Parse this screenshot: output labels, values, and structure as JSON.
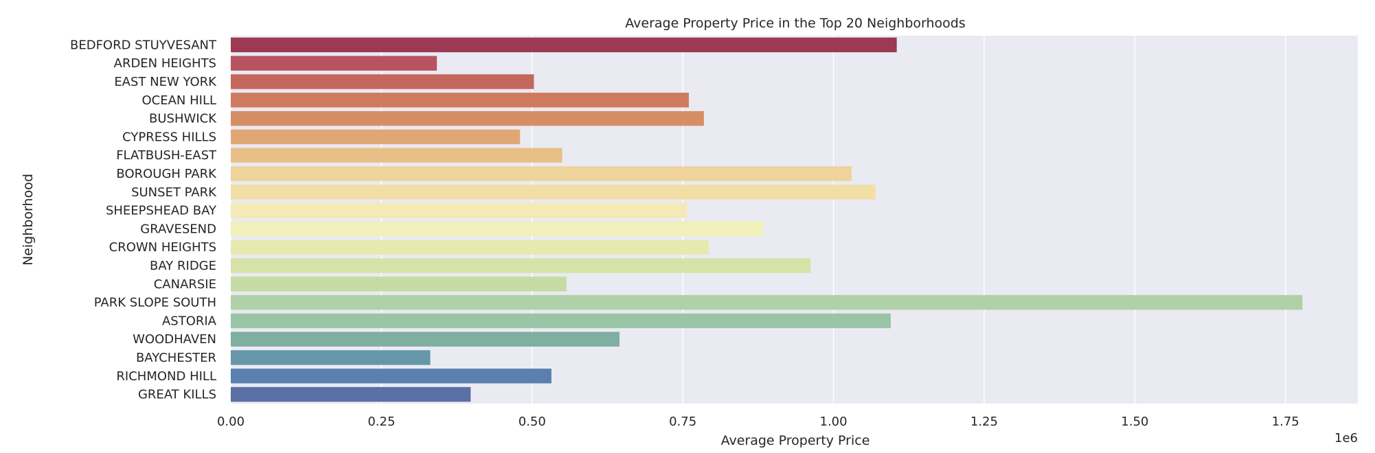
{
  "chart_data": {
    "type": "bar",
    "orientation": "horizontal",
    "title": "Average Property Price in the Top 20 Neighborhoods",
    "xlabel": "Average Property Price",
    "ylabel": "Neighborhood",
    "xlim": [
      0,
      1870000
    ],
    "x_ticks": [
      0,
      250000,
      500000,
      750000,
      1000000,
      1250000,
      1500000,
      1750000
    ],
    "x_tick_labels": [
      "0.00",
      "0.25",
      "0.50",
      "0.75",
      "1.00",
      "1.25",
      "1.50",
      "1.75"
    ],
    "x_offset_label": "1e6",
    "grid": true,
    "background_color": "#eaeaf2",
    "categories": [
      "BEDFORD STUYVESANT",
      "ARDEN HEIGHTS",
      "EAST NEW YORK",
      "OCEAN HILL",
      "BUSHWICK",
      "CYPRESS HILLS",
      "FLATBUSH-EAST",
      "BOROUGH PARK",
      "SUNSET PARK",
      "SHEEPSHEAD BAY",
      "GRAVESEND",
      "CROWN HEIGHTS",
      "BAY RIDGE",
      "CANARSIE",
      "PARK SLOPE SOUTH",
      "ASTORIA",
      "WOODHAVEN",
      "BAYCHESTER",
      "RICHMOND HILL",
      "GREAT KILLS"
    ],
    "values": [
      1105000,
      342000,
      503000,
      760000,
      785000,
      480000,
      550000,
      1030000,
      1070000,
      757000,
      883000,
      793000,
      962000,
      557000,
      1778000,
      1095000,
      645000,
      331000,
      532000,
      398000
    ],
    "colors": [
      "#9b3a52",
      "#b85462",
      "#c4675c",
      "#cf7a5f",
      "#d68e66",
      "#e0a774",
      "#e8c087",
      "#eed39a",
      "#f1dfa6",
      "#f3eab5",
      "#f1f0bb",
      "#e6eaaf",
      "#d6e2a6",
      "#c5dba4",
      "#afd1a8",
      "#99c4a6",
      "#7eafa0",
      "#6697a8",
      "#5a80ad",
      "#5a6fa5"
    ]
  }
}
